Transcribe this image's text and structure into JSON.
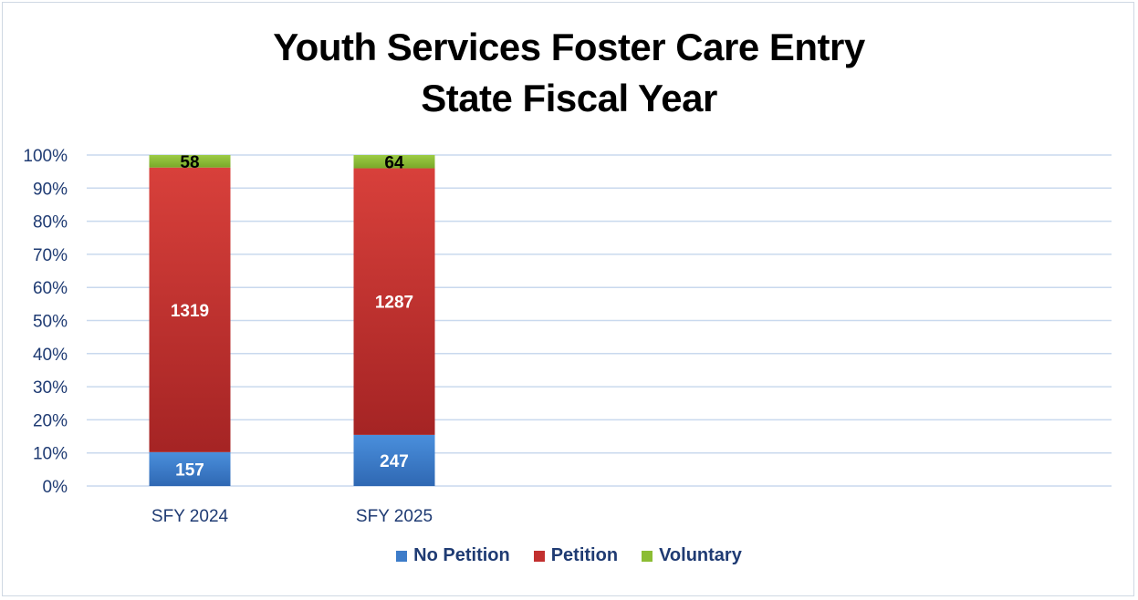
{
  "chart_data": {
    "type": "bar",
    "stacked": true,
    "normalized": true,
    "title": [
      "Youth Services Foster Care Entry",
      "State Fiscal Year"
    ],
    "xlabel": "",
    "ylabel": "",
    "categories": [
      "SFY 2024",
      "SFY 2025"
    ],
    "y_ticks": [
      "0%",
      "10%",
      "20%",
      "30%",
      "40%",
      "50%",
      "60%",
      "70%",
      "80%",
      "90%",
      "100%"
    ],
    "ylim": [
      0,
      100
    ],
    "grid": true,
    "legend_position": "bottom",
    "series": [
      {
        "name": "No Petition",
        "values": [
          157,
          247
        ],
        "color": "#3d7cc9"
      },
      {
        "name": "Petition",
        "values": [
          1319,
          1287
        ],
        "color": "#c2302f"
      },
      {
        "name": "Voluntary",
        "values": [
          58,
          64
        ],
        "color": "#8cbd34"
      }
    ]
  }
}
